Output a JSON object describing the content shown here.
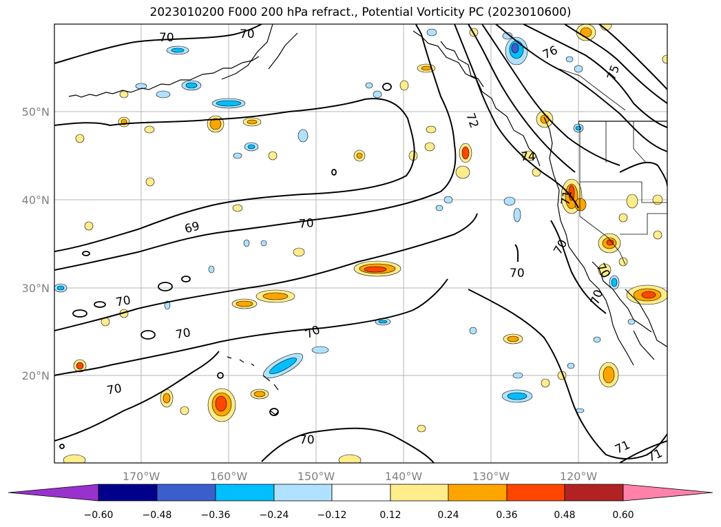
{
  "title": "2023010200 F000 200 hPa refract., Potential Vorticity PC (2023010600)",
  "lon_ticks": [
    "170°W",
    "160°W",
    "150°W",
    "140°W",
    "130°W",
    "120°W"
  ],
  "lat_ticks": [
    "50°N",
    "40°N",
    "30°N",
    "20°N"
  ],
  "contour_labels": [
    "70",
    "70",
    "76",
    "75",
    "72",
    "74",
    "71",
    "69",
    "70",
    "70",
    "70",
    "70",
    "70",
    "70",
    "70",
    "70",
    "70",
    "70",
    "71",
    "71"
  ],
  "colorbar": {
    "ticks": [
      "−0.60",
      "−0.48",
      "−0.36",
      "−0.24",
      "−0.12",
      "0.12",
      "0.24",
      "0.36",
      "0.48",
      "0.60"
    ],
    "colors": [
      "#9932cc",
      "#00008b",
      "#3a5fcd",
      "#00bfff",
      "#b0e2ff",
      "#ffffff",
      "#ffec8b",
      "#ffa500",
      "#ff4500",
      "#b22222",
      "#ff82ab"
    ]
  }
}
